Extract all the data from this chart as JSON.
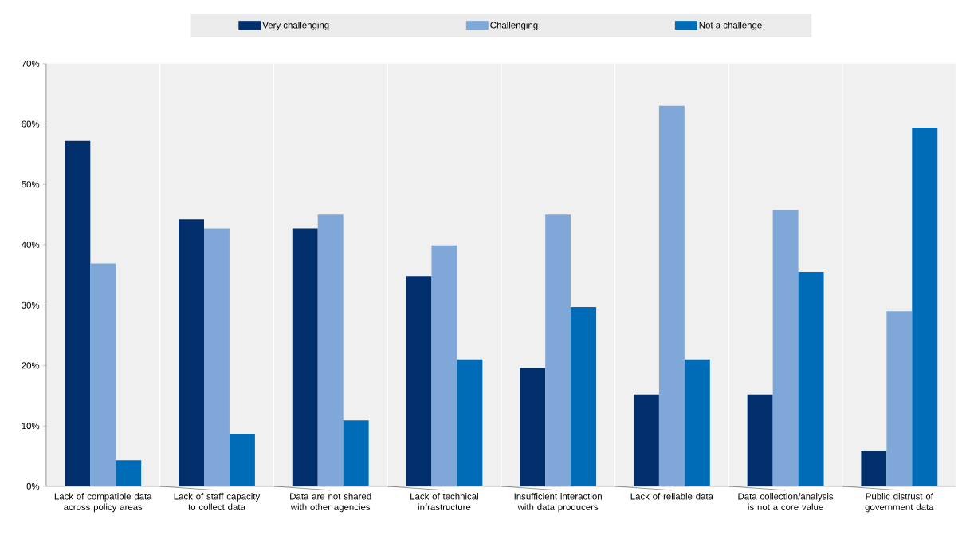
{
  "chart_data": {
    "type": "bar",
    "categories": [
      "Lack of compatible data across policy areas",
      "Lack of staff capacity to collect data",
      "Data are not shared with other agencies",
      "Lack of technical infrastructure",
      "Insufficient interaction with data producers",
      "Lack of reliable data",
      "Data collection/analysis is not a core value",
      "Public distrust of government data"
    ],
    "series": [
      {
        "name": "Very challenging",
        "color": "#002f6c",
        "values": [
          57.2,
          44.2,
          42.7,
          34.8,
          19.6,
          15.2,
          15.2,
          5.8
        ]
      },
      {
        "name": "Challenging",
        "color": "#7fa8d9",
        "values": [
          36.9,
          42.7,
          45.0,
          39.9,
          45.0,
          63.0,
          45.7,
          29.0
        ]
      },
      {
        "name": "Not a challenge",
        "color": "#006bb6",
        "values": [
          4.3,
          8.7,
          10.9,
          21.0,
          29.7,
          21.0,
          35.5,
          59.4
        ]
      }
    ],
    "ylim": [
      0,
      70
    ],
    "yticks": [
      {
        "value": 0,
        "label": "0%"
      },
      {
        "value": 10,
        "label": "10%"
      },
      {
        "value": 20,
        "label": "20%"
      },
      {
        "value": 30,
        "label": "30%"
      },
      {
        "value": 40,
        "label": "40%"
      },
      {
        "value": 50,
        "label": "50%"
      },
      {
        "value": 60,
        "label": "60%"
      },
      {
        "value": 70,
        "label": "70%"
      }
    ],
    "legend": "top",
    "grid": false
  }
}
